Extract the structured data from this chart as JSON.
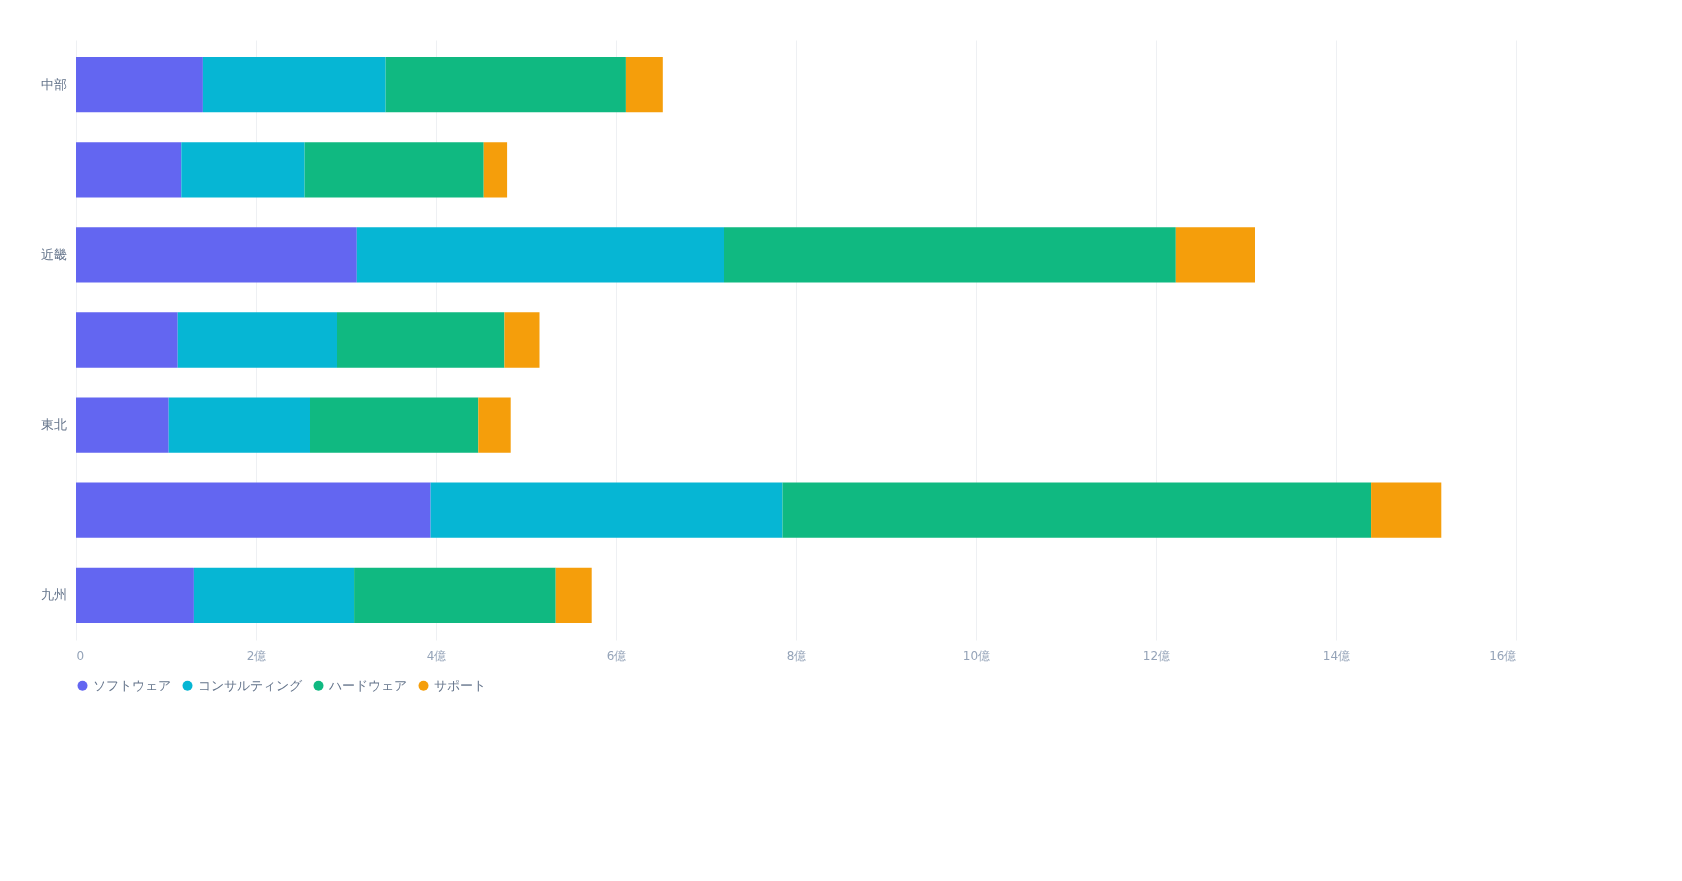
{
  "chart_data": {
    "type": "bar",
    "orientation": "horizontal",
    "stacked": true,
    "categories": [
      "中部",
      null,
      "近畿",
      null,
      "東北",
      null,
      "九州"
    ],
    "series": [
      {
        "name": "ソフトウェア",
        "color": "#6366f1",
        "values": [
          1.41,
          1.17,
          3.12,
          1.13,
          1.03,
          3.94,
          1.31
        ]
      },
      {
        "name": "コンサルティング",
        "color": "#06b6d4",
        "values": [
          2.03,
          1.37,
          4.08,
          1.77,
          1.57,
          3.91,
          1.78
        ]
      },
      {
        "name": "ハードウェア",
        "color": "#10b981",
        "values": [
          2.67,
          1.99,
          5.02,
          1.86,
          1.87,
          6.54,
          2.24
        ]
      },
      {
        "name": "サポート",
        "color": "#f59e0b",
        "values": [
          0.41,
          0.26,
          0.88,
          0.39,
          0.36,
          0.78,
          0.4
        ]
      }
    ],
    "xlim": [
      0,
      16
    ],
    "xticks": [
      0,
      {
        "value": 2,
        "label": "2億"
      },
      {
        "value": 4,
        "label": "4億"
      },
      {
        "value": 6,
        "label": "6億"
      },
      {
        "value": 8,
        "label": "8億"
      },
      {
        "value": 10,
        "label": "10億"
      },
      {
        "value": 12,
        "label": "12億"
      },
      {
        "value": 14,
        "label": "14億"
      },
      {
        "value": 16,
        "label": "16億"
      }
    ],
    "grid": "x",
    "legend": "bottom"
  }
}
